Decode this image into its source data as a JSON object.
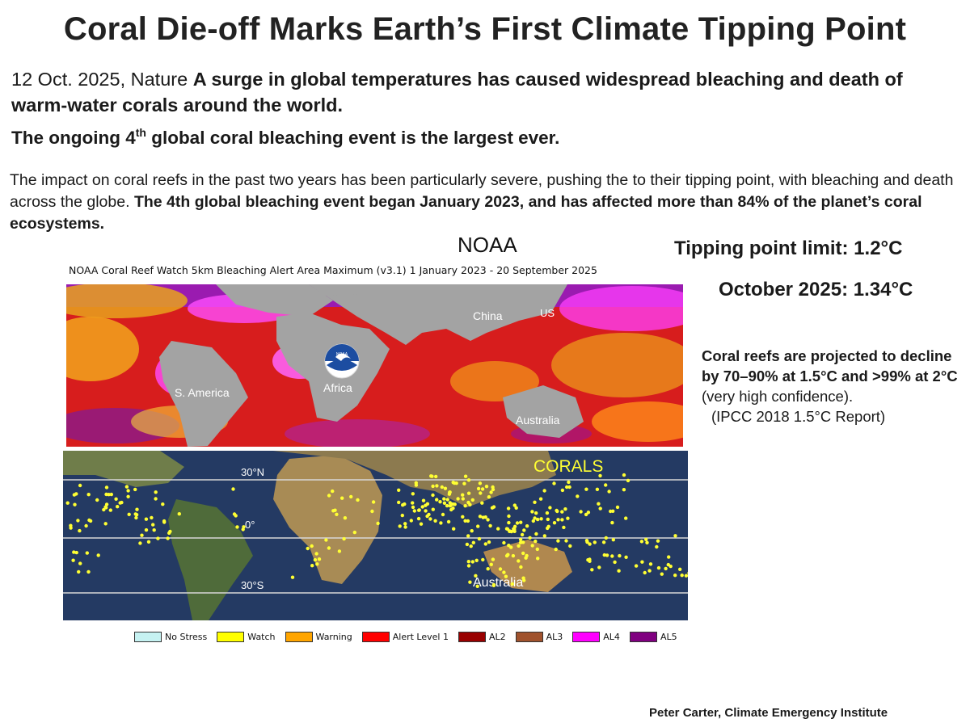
{
  "title": "Coral Die-off Marks Earth’s First Climate Tipping Point",
  "intro": {
    "date_source": "12 Oct. 2025,  Nature ",
    "headline": "A surge in global temperatures has caused widespread bleaching and death of warm-water corals around the world."
  },
  "ongoing": {
    "before": "The ongoing 4",
    "sup": "th",
    "after": " global coral bleaching event is the largest ever."
  },
  "impact": {
    "text": "The impact on coral reefs in the past two years has been particularly severe, pushing the to their tipping point, with bleaching and death across the globe. ",
    "bold": "The 4th global bleaching event began January 2023, and has affected more than 84% of the planet’s coral ecosystems."
  },
  "noaa_label": "NOAA",
  "map_caption": "NOAA Coral Reef Watch 5km Bleaching Alert Area Maximum  (v3.1)   1 January 2023 - 20 September 2025",
  "tipping_limit": "Tipping point limit: 1.2°C",
  "october_2025": "October 2025:   1.34°C",
  "decline": {
    "line1": "Coral reefs are projected to decline by  70–90% at 1.5°C and  >99% at 2°C",
    "line2": " (very high confidence).",
    "source": "(IPCC 2018 1.5°C Report)"
  },
  "bleaching_map": {
    "labels": {
      "china": "China",
      "us": "US",
      "s_america": "S. America",
      "africa": "Africa",
      "australia": "Australia",
      "noaa_logo": "NOAA"
    }
  },
  "corals_map": {
    "title": "CORALS",
    "lat_30n": "30°N",
    "lat_0": "0°",
    "lat_30s": "30°S",
    "australia": "Australia"
  },
  "legend": [
    {
      "label": "No Stress",
      "color": "#c6f2f2"
    },
    {
      "label": "Watch",
      "color": "#ffff00"
    },
    {
      "label": "Warning",
      "color": "#ffa500"
    },
    {
      "label": "Alert Level 1",
      "color": "#ff0000"
    },
    {
      "label": "AL2",
      "color": "#990000"
    },
    {
      "label": "AL3",
      "color": "#a0522d"
    },
    {
      "label": "AL4",
      "color": "#ff00ff"
    },
    {
      "label": "AL5",
      "color": "#800080"
    }
  ],
  "credit": "Peter Carter, Climate Emergency Institute"
}
